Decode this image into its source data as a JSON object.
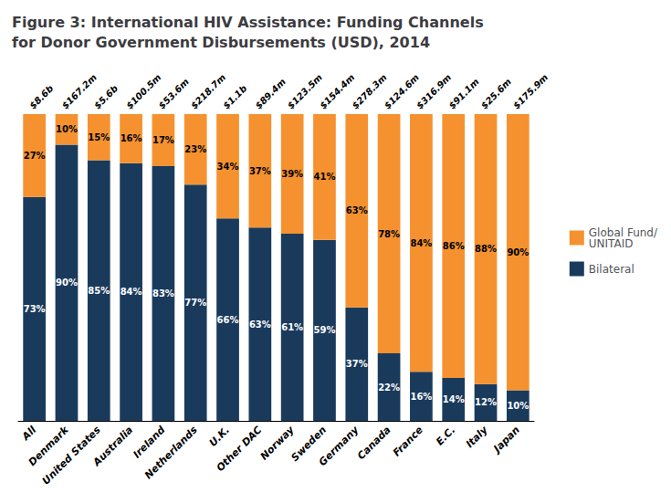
{
  "chart_data": {
    "type": "bar",
    "title": "Figure 3: International HIV Assistance: Funding Channels\nfor Donor Government Disbursements (USD), 2014",
    "categories": [
      "All",
      "Denmark",
      "United States",
      "Australia",
      "Ireland",
      "Netherlands",
      "U.K.",
      "Other DAC",
      "Norway",
      "Sweden",
      "Germany",
      "Canada",
      "France",
      "E.C.",
      "Italy",
      "Japan"
    ],
    "series": [
      {
        "name": "Bilateral",
        "color": "#1a3a5c",
        "values": [
          73,
          90,
          85,
          84,
          83,
          77,
          66,
          63,
          61,
          59,
          37,
          22,
          16,
          14,
          12,
          10
        ],
        "value_labels": [
          "73%",
          "90%",
          "85%",
          "84%",
          "83%",
          "77%",
          "66%",
          "63%",
          "61%",
          "59%",
          "37%",
          "22%",
          "16%",
          "14%",
          "12%",
          "10%"
        ]
      },
      {
        "name": "Global Fund/\nUNITAID",
        "color": "#f5922f",
        "values": [
          27,
          10,
          15,
          16,
          17,
          23,
          34,
          37,
          39,
          41,
          63,
          78,
          84,
          86,
          88,
          90
        ],
        "value_labels": [
          "27%",
          "10%",
          "15%",
          "16%",
          "17%",
          "23%",
          "34%",
          "37%",
          "39%",
          "41%",
          "63%",
          "78%",
          "84%",
          "86%",
          "88%",
          "90%"
        ]
      }
    ],
    "total_labels": [
      "$8.6b",
      "$167.2m",
      "$5.6b",
      "$100.5m",
      "$53.6m",
      "$218.7m",
      "$1.1b",
      "$89.4m",
      "$123.5m",
      "$154.4m",
      "$278.3m",
      "$124.6m",
      "$316.9m",
      "$91.1m",
      "$25.6m",
      "$175.9m"
    ],
    "ylim": [
      0,
      100
    ],
    "stacked": true,
    "data_labels": true,
    "tick_labels": "x",
    "grid": false,
    "legend": "right"
  }
}
